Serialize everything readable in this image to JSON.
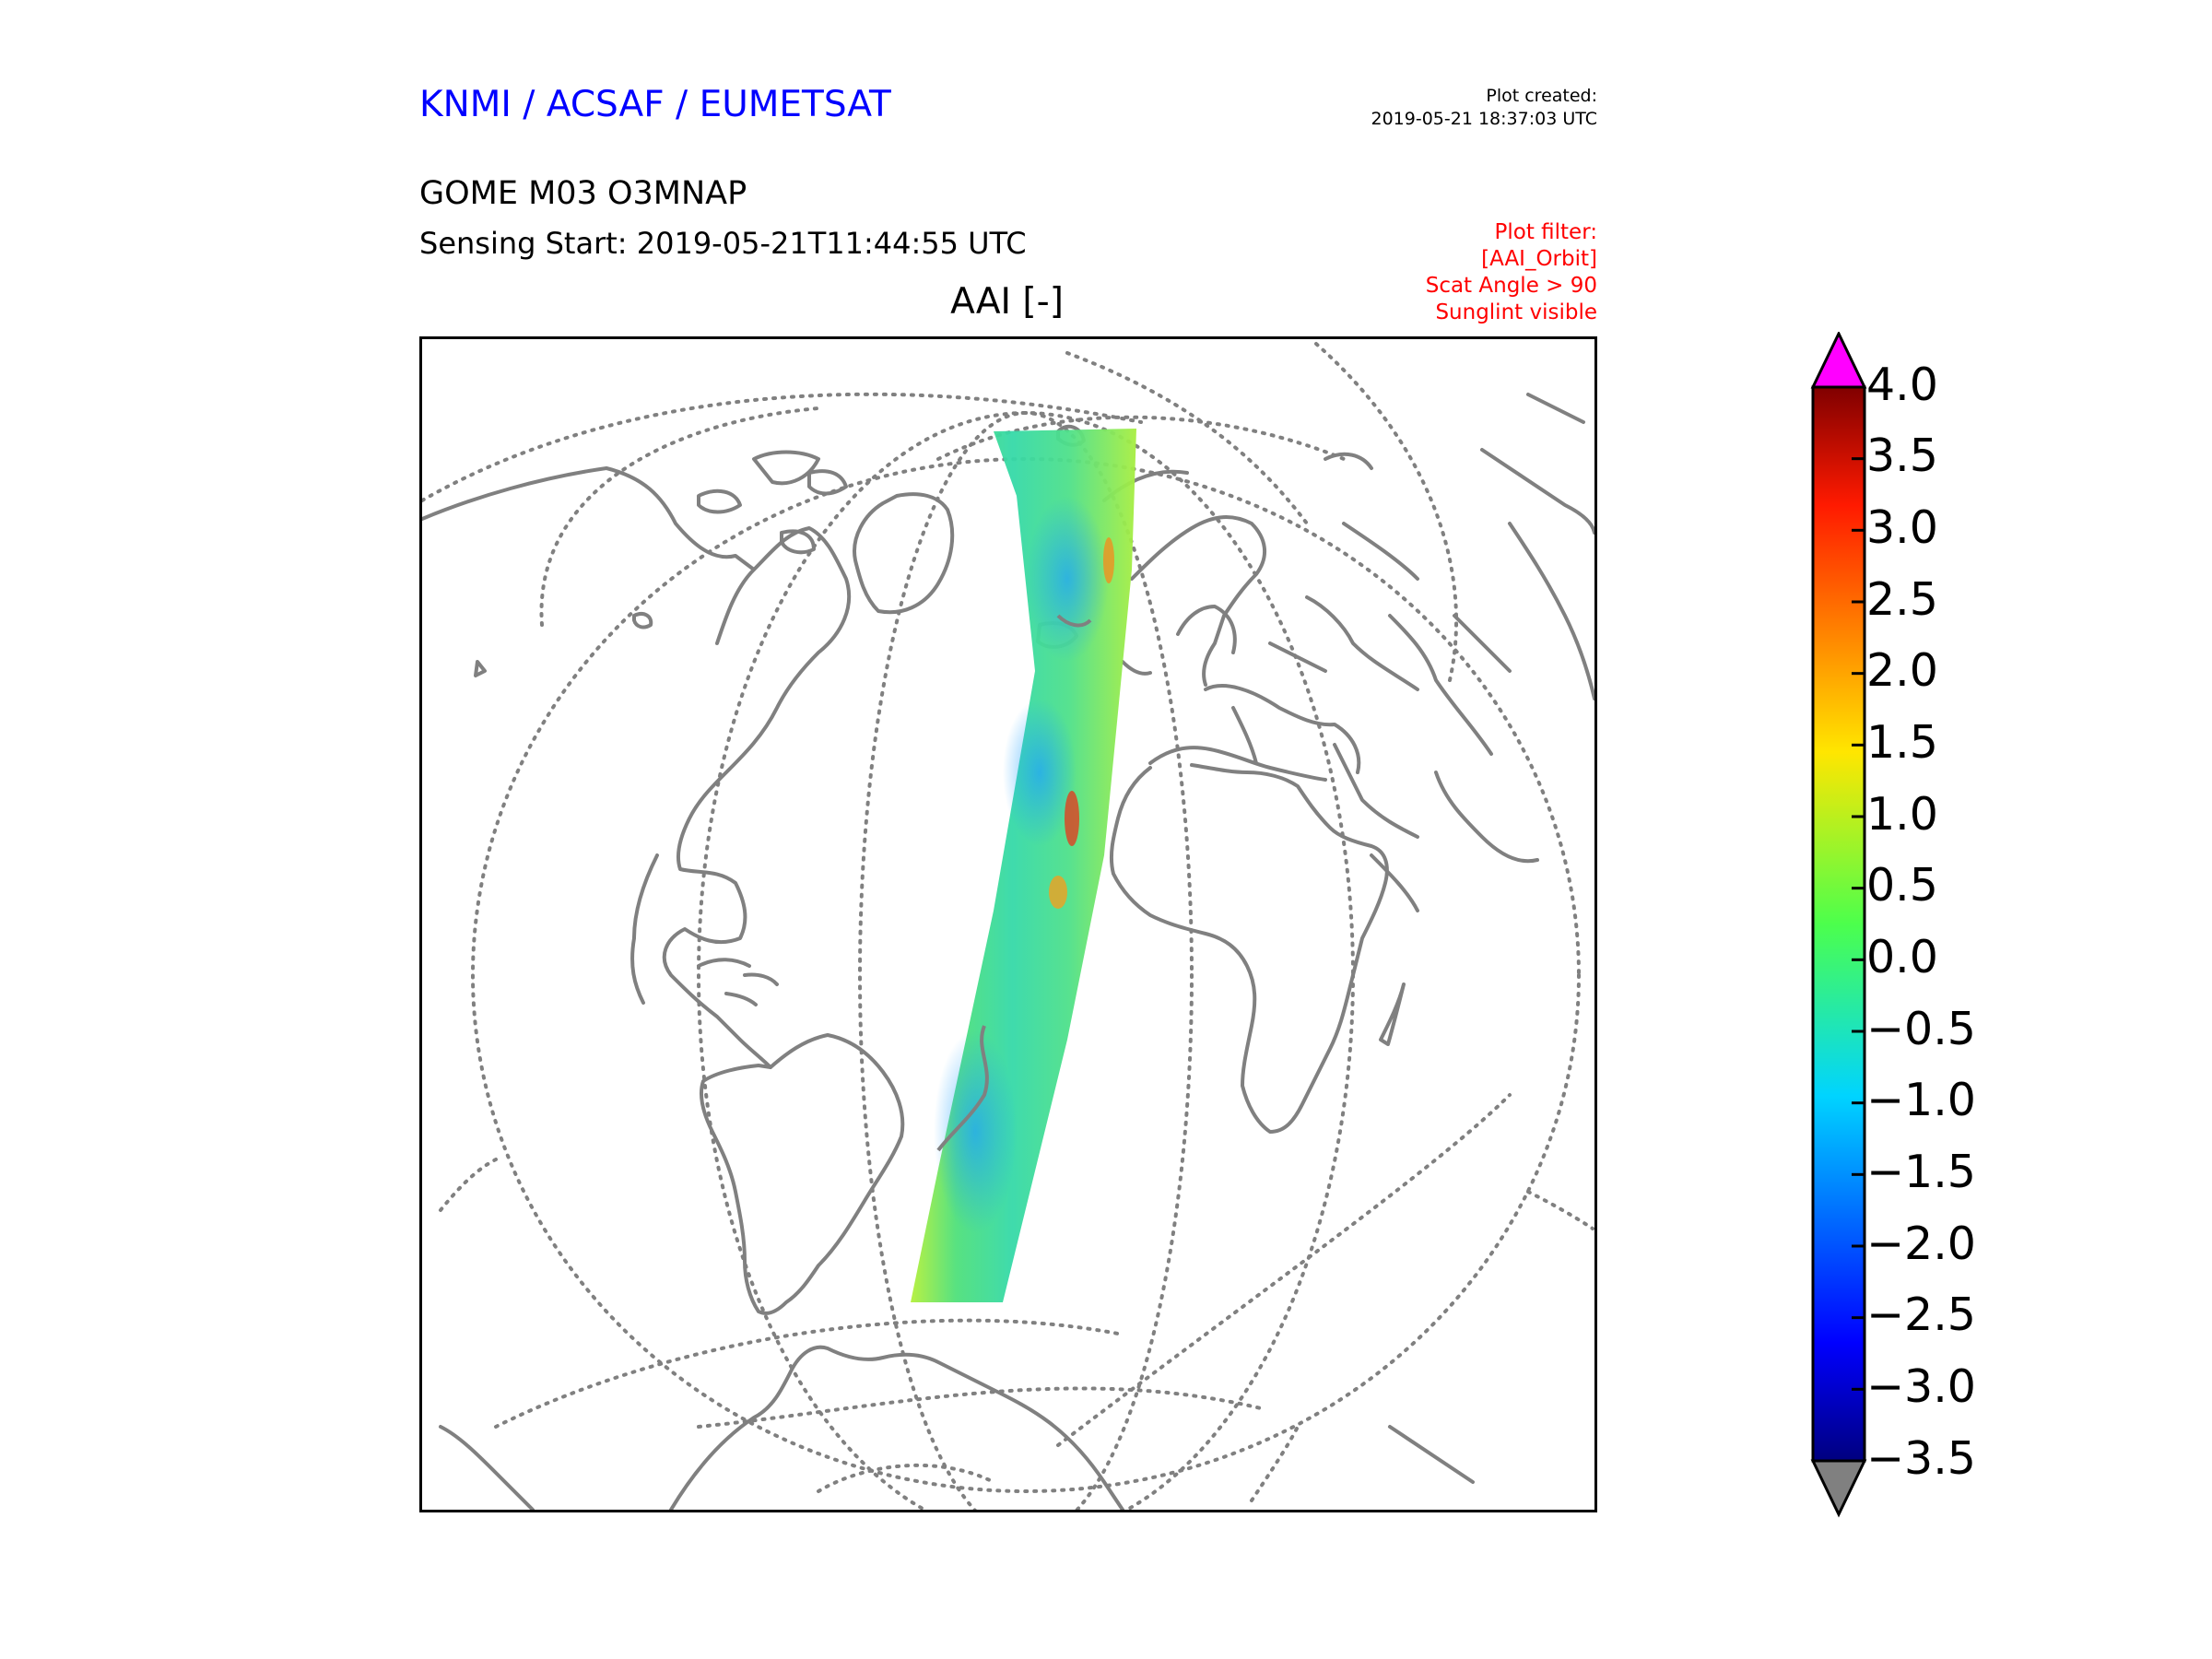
{
  "header": {
    "organizations": "KNMI / ACSAF / EUMETSAT",
    "created_label": "Plot created:",
    "created_time": "2019-05-21 18:37:03 UTC",
    "product": "GOME M03 O3MNAP",
    "sensing_start": "Sensing Start: 2019-05-21T11:44:55 UTC",
    "map_title": "AAI [-]"
  },
  "filter": {
    "lines": [
      "Plot filter:",
      "[AAI_Orbit]",
      "Scat Angle > 90",
      "Sunglint visible"
    ]
  },
  "colorbar": {
    "ticks": [
      "4.0",
      "3.5",
      "3.0",
      "2.5",
      "2.0",
      "1.5",
      "1.0",
      "0.5",
      "0.0",
      "−0.5",
      "−1.0",
      "−1.5",
      "−2.0",
      "−2.5",
      "−3.0",
      "−3.5"
    ],
    "min": -3.5,
    "max": 4.0,
    "over_color": "#ff00ff",
    "under_color": "#808080"
  },
  "colors": {
    "org_text": "#0000ff",
    "filter_text": "#ff0000",
    "coastline": "#808080",
    "graticule": "#808080"
  }
}
